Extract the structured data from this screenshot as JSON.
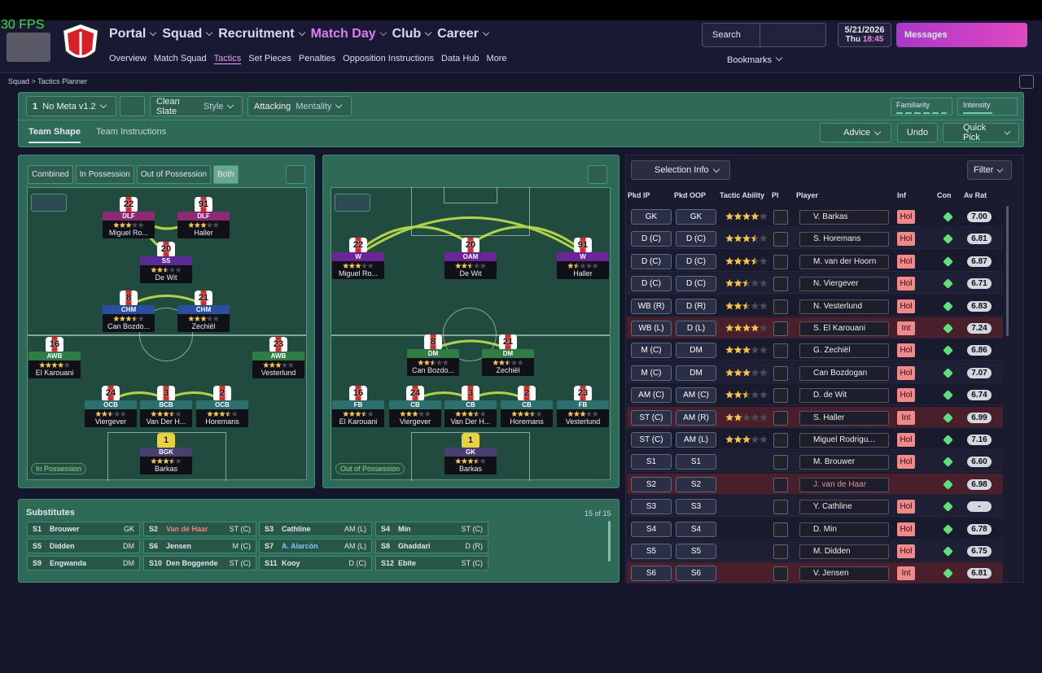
{
  "fps": "30 FPS",
  "nav": {
    "main": [
      "Portal",
      "Squad",
      "Recruitment",
      "Match Day",
      "Club",
      "Career"
    ],
    "active_main": 3,
    "sub": [
      "Overview",
      "Match Squad",
      "Tactics",
      "Set Pieces",
      "Penalties",
      "Opposition Instructions",
      "Data Hub",
      "More"
    ],
    "active_sub": 2
  },
  "topbar": {
    "search": "Search",
    "date": "5/21/2026",
    "day": "Thu",
    "time": "18:45",
    "messages": "Messages",
    "bookmarks": "Bookmarks"
  },
  "breadcrumb": [
    "Squad",
    "Tactics Planner"
  ],
  "toolbar": {
    "tactic_number": "1",
    "tactic": "No Meta v1.2",
    "style_value": "Clean Slate",
    "style_label": "Style",
    "mentality_value": "Attacking",
    "mentality_label": "Mentality",
    "familiarity": "Familiarity",
    "intensity": "Intensity"
  },
  "tabs": [
    "Team Shape",
    "Team Instructions"
  ],
  "actions": {
    "advice": "Advice",
    "undo": "Undo",
    "quick_pick": "Quick Pick"
  },
  "modes": [
    "Combined",
    "In Possession",
    "Out of Possession",
    "Both"
  ],
  "active_mode": 3,
  "in_possession": {
    "label": "In Possession",
    "players": [
      {
        "number": "22",
        "role": "DLF",
        "name": "Miguel Ro...",
        "stars": 3,
        "color": "#8c2a72"
      },
      {
        "number": "91",
        "role": "DLF",
        "name": "Haller",
        "stars": 3,
        "color": "#8c2a72"
      },
      {
        "number": "20",
        "role": "SS",
        "name": "De Wit",
        "stars": 2.5,
        "color": "#5b2a94"
      },
      {
        "number": "8",
        "role": "CHM",
        "name": "Can Bozdo...",
        "stars": 3.5,
        "color": "#2a4f9e"
      },
      {
        "number": "21",
        "role": "CHM",
        "name": "Zechiël",
        "stars": 3,
        "color": "#2a4f9e"
      },
      {
        "number": "16",
        "role": "AWB",
        "name": "El Karouani",
        "stars": 4,
        "color": "#2f7d45"
      },
      {
        "number": "23",
        "role": "AWB",
        "name": "Vesterlund",
        "stars": 3,
        "color": "#2f7d45"
      },
      {
        "number": "24",
        "role": "OCB",
        "name": "Viergever",
        "stars": 2.5,
        "color": "#2c6f6c"
      },
      {
        "number": "3",
        "role": "BCB",
        "name": "Van Der H...",
        "stars": 3.5,
        "color": "#2c6f6c"
      },
      {
        "number": "2",
        "role": "OCB",
        "name": "Horemans",
        "stars": 3.5,
        "color": "#2c6f6c"
      },
      {
        "number": "1",
        "role": "BGK",
        "name": "Barkas",
        "stars": 3.5,
        "color": "#4a3f6e"
      }
    ]
  },
  "out_of_possession": {
    "label": "Out of Possession",
    "players": [
      {
        "number": "22",
        "role": "W",
        "name": "Miguel Ro...",
        "stars": 3,
        "color": "#6a2596"
      },
      {
        "number": "20",
        "role": "OAM",
        "name": "De Wit",
        "stars": 2.5,
        "color": "#6a2596"
      },
      {
        "number": "91",
        "role": "W",
        "name": "Haller",
        "stars": 1.5,
        "color": "#6a2596"
      },
      {
        "number": "8",
        "role": "DM",
        "name": "Can Bozdo...",
        "stars": 2.5,
        "color": "#2f7d45"
      },
      {
        "number": "21",
        "role": "DM",
        "name": "Zechiël",
        "stars": 2.5,
        "color": "#2f7d45"
      },
      {
        "number": "16",
        "role": "FB",
        "name": "El Karouani",
        "stars": 3.5,
        "color": "#2c6f6c"
      },
      {
        "number": "24",
        "role": "CB",
        "name": "Viergever",
        "stars": 3,
        "color": "#2c6f6c"
      },
      {
        "number": "3",
        "role": "CB",
        "name": "Van Der H...",
        "stars": 3.5,
        "color": "#2c6f6c"
      },
      {
        "number": "2",
        "role": "CB",
        "name": "Horemans",
        "stars": 3.5,
        "color": "#2c6f6c"
      },
      {
        "number": "23",
        "role": "FB",
        "name": "Vesterlund",
        "stars": 3,
        "color": "#2c6f6c"
      },
      {
        "number": "1",
        "role": "GK",
        "name": "Barkas",
        "stars": 3.5,
        "color": "#4a3f6e"
      }
    ]
  },
  "substitutes": {
    "title": "Substitutes",
    "count": "15 of 15",
    "rows": [
      {
        "slot": "S1",
        "name": "Brouwer",
        "position": "GK"
      },
      {
        "slot": "S2",
        "name": "Van de Haar",
        "position": "ST (C)",
        "color": "#f08080"
      },
      {
        "slot": "S3",
        "name": "Cathline",
        "position": "AM (L)"
      },
      {
        "slot": "S4",
        "name": "Min",
        "position": "ST (C)"
      },
      {
        "slot": "S5",
        "name": "Didden",
        "position": "DM"
      },
      {
        "slot": "S6",
        "name": "Jensen",
        "position": "M (C)"
      },
      {
        "slot": "S7",
        "name": "A. Alarcón",
        "position": "AM (L)",
        "color": "#7fc8f0"
      },
      {
        "slot": "S8",
        "name": "Ghaddari",
        "position": "D (R)"
      },
      {
        "slot": "S9",
        "name": "Engwanda",
        "position": "DM"
      },
      {
        "slot": "S10",
        "name": "Den Boggende",
        "position": "ST (C)"
      },
      {
        "slot": "S11",
        "name": "Kooy",
        "position": "D (C)"
      },
      {
        "slot": "S12",
        "name": "Ebite",
        "position": "ST (C)"
      }
    ]
  },
  "selection": {
    "title": "Selection Info",
    "filter": "Filter",
    "columns": [
      "Pkd IP",
      "Pkd OOP",
      "Tactic Ability",
      "Pl",
      "Player",
      "Inf",
      "Con",
      "Av Rat"
    ],
    "rows": [
      {
        "ip": "GK",
        "oop": "GK",
        "ability": 4,
        "player": "V. Barkas",
        "inf": "Hol",
        "rating": "7.00"
      },
      {
        "ip": "D (C)",
        "oop": "D (C)",
        "ability": 3.5,
        "player": "S. Horemans",
        "inf": "Hol",
        "rating": "6.81"
      },
      {
        "ip": "D (C)",
        "oop": "D (C)",
        "ability": 3.5,
        "player": "M. van der Hoorn",
        "inf": "Hol",
        "rating": "6.87"
      },
      {
        "ip": "D (C)",
        "oop": "D (C)",
        "ability": 2.5,
        "player": "N. Viergever",
        "inf": "Hol",
        "rating": "6.71"
      },
      {
        "ip": "WB (R)",
        "oop": "D (R)",
        "ability": 2.5,
        "player": "N. Vesterlund",
        "inf": "Hol",
        "rating": "6.83"
      },
      {
        "ip": "WB (L)",
        "oop": "D (L)",
        "ability": 4,
        "player": "S. El Karouani",
        "inf": "Int",
        "rating": "7.24",
        "color": "#4a1f2c"
      },
      {
        "ip": "M (C)",
        "oop": "DM",
        "ability": 3,
        "player": "G. Zechiël",
        "inf": "Hol",
        "rating": "6.86"
      },
      {
        "ip": "M (C)",
        "oop": "DM",
        "ability": 3,
        "player": "Can Bozdogan",
        "inf": "Hol",
        "rating": "7.07"
      },
      {
        "ip": "AM (C)",
        "oop": "AM (C)",
        "ability": 2.5,
        "player": "D. de Wit",
        "inf": "Hol",
        "rating": "6.74"
      },
      {
        "ip": "ST (C)",
        "oop": "AM (R)",
        "ability": 2,
        "player": "S. Haller",
        "inf": "Int",
        "rating": "6.99",
        "color": "#4a1f2c"
      },
      {
        "ip": "ST (C)",
        "oop": "AM (L)",
        "ability": 3,
        "player": "Miguel Rodrigu...",
        "inf": "Hol",
        "rating": "7.16"
      },
      {
        "ip": "S1",
        "oop": "S1",
        "player": "M. Brouwer",
        "inf": "Hol",
        "rating": "6.60"
      },
      {
        "ip": "S2",
        "oop": "S2",
        "player": "J. van de Haar",
        "rating": "6.98",
        "color": "#4a1f2c"
      },
      {
        "ip": "S3",
        "oop": "S3",
        "player": "Y. Cathline",
        "inf": "Hol",
        "rating": "-"
      },
      {
        "ip": "S4",
        "oop": "S4",
        "player": "D. Min",
        "inf": "Hol",
        "rating": "6.78"
      },
      {
        "ip": "S5",
        "oop": "S5",
        "player": "M. Didden",
        "inf": "Hol",
        "rating": "6.75"
      },
      {
        "ip": "S6",
        "oop": "S6",
        "player": "V. Jensen",
        "inf": "Int",
        "rating": "6.81",
        "color": "#4a1f2c"
      }
    ]
  }
}
